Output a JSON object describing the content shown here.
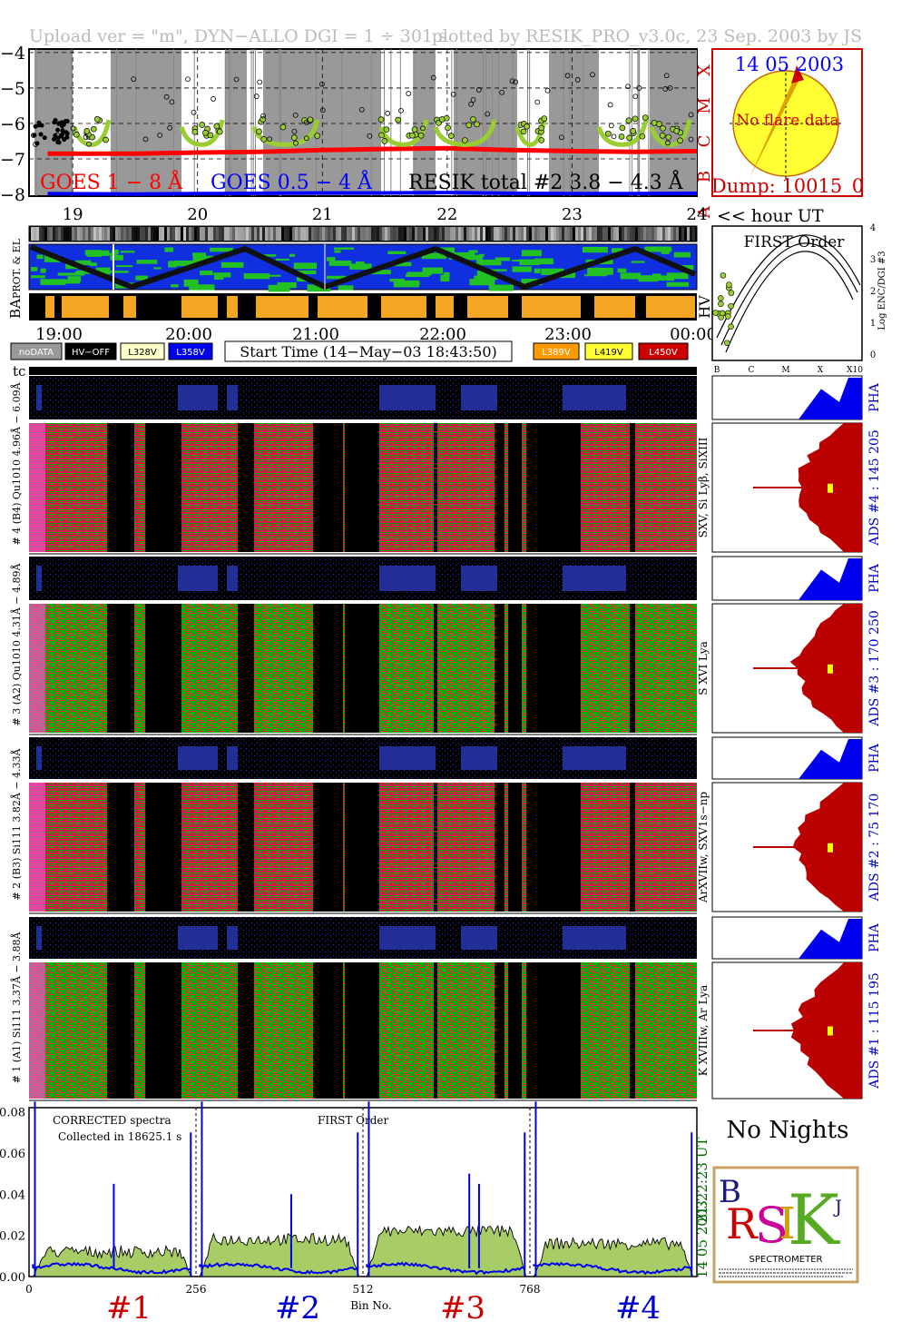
{
  "header": {
    "left": "Upload ver = \"m\", DYN−ALLO DGI =   1 ÷ 301 s",
    "right": "plotted by RESIK_PRO_v3.0c, 23 Sep. 2003 by JS"
  },
  "goes": {
    "ylim": [
      -8,
      -4
    ],
    "yticks": [
      "−4",
      "−5",
      "−6",
      "−7",
      "−8"
    ],
    "class_labels": [
      "X",
      "M",
      "C",
      "B",
      "A"
    ],
    "legend_goes1": "GOES 1 − 8 Å",
    "legend_goes2": "GOES 0.5 − 4 Å",
    "legend_resik": "RESIK total #2  3.8 − 4.3 Å",
    "hour_ticks": [
      "19",
      "20",
      "21",
      "22",
      "23",
      "24"
    ],
    "hour_unit": "<< hour UT",
    "colors": {
      "goes1": "#ff0000",
      "goes2": "#0000ff",
      "resik": "#9acd32"
    }
  },
  "sun": {
    "date": "14 05 2003",
    "note": "No flare data",
    "dump": "Dump: 10015_0"
  },
  "panels": {
    "prot_label": "PROT. & EL",
    "ba_label": "BA",
    "hv_label": "HV",
    "time_ticks": [
      "19:00",
      "20:00",
      "21:00",
      "22:00",
      "23:00",
      "00:00"
    ],
    "tc_label": "tc"
  },
  "legend_buttons": {
    "nodata": "noDATA",
    "hvoff": "HV−OFF",
    "l328": "L328V",
    "l358": "L358V",
    "start": "Start Time (14−May−03 18:43:50)",
    "l389": "L389V",
    "l419": "L419V",
    "l450": "L450V"
  },
  "first_order": {
    "title": "FIRST Order",
    "ylabel": "Log ENC/DGI #3",
    "yticks": [
      "0",
      "1",
      "2",
      "3",
      "4"
    ],
    "xticks": [
      "B",
      "C",
      "M",
      "X",
      "X10"
    ]
  },
  "channels": [
    {
      "tc_label": "# 4 (B4) Qu1010 4.96Å − 6.09Å",
      "lines": "SXV, Si Lyβ, SiXIII",
      "ads": "ADS #4 :   145 205",
      "pha": "PHA"
    },
    {
      "tc_label": "# 3 (A2) Qu1010 4.31Å − 4.89Å",
      "lines": "S XVI Lya",
      "ads": "ADS #3 :   170 250",
      "pha": "PHA"
    },
    {
      "tc_label": "# 2 (B3) Si111 3.82Å − 4.33Å",
      "lines": "ArXVIIw, SXV1s−np",
      "ads": "ADS #2 :   75 170",
      "pha": "PHA"
    },
    {
      "tc_label": "# 1 (A1) Si111 3.37Å − 3.88Å",
      "lines": "K XVIIIw, Ar Lya",
      "ads": "ADS #1 :   115 195",
      "pha": "PHA"
    }
  ],
  "spectra": {
    "title": "CORRECTED spectra",
    "collected": "Collected in 18625.1 s",
    "order": "FIRST Order",
    "yticks": [
      "0.00",
      "0.02",
      "0.04",
      "0.06",
      "0.08"
    ],
    "ylim": [
      0,
      0.08
    ],
    "xticks": [
      "0",
      "256",
      "512",
      "768"
    ],
    "xlabel": "Bin No.",
    "ut": "21:22:23 UT",
    "date": "14 05 2003",
    "detectors": [
      "#1",
      "#2",
      "#3",
      "#4"
    ]
  },
  "no_nights": "No Nights",
  "logo": {
    "letters": "RESIK",
    "sub": "SPECTROMETER"
  },
  "chart_data": {
    "type": "line",
    "title": "",
    "x_range_hours_ut": [
      18.7,
      24.0
    ],
    "series": [
      {
        "name": "GOES 1 − 8 Å",
        "x": [
          18.8,
          19.5,
          20.0,
          20.5,
          21.0,
          21.5,
          22.0,
          22.5,
          23.0,
          23.5,
          24.0
        ],
        "values": [
          -6.85,
          -6.85,
          -6.82,
          -6.8,
          -6.75,
          -6.72,
          -6.7,
          -6.75,
          -6.78,
          -6.8,
          -6.78
        ]
      },
      {
        "name": "GOES 0.5 − 4 Å",
        "x": [
          18.8,
          19.5,
          20.0,
          20.5,
          21.0,
          21.5,
          22.0,
          22.5,
          23.0,
          23.5,
          24.0
        ],
        "values": [
          -7.98,
          -7.99,
          -7.98,
          -7.97,
          -7.96,
          -7.96,
          -7.95,
          -7.97,
          -7.98,
          -7.98,
          -7.97
        ]
      }
    ],
    "ylim": [
      -8,
      -4
    ]
  }
}
